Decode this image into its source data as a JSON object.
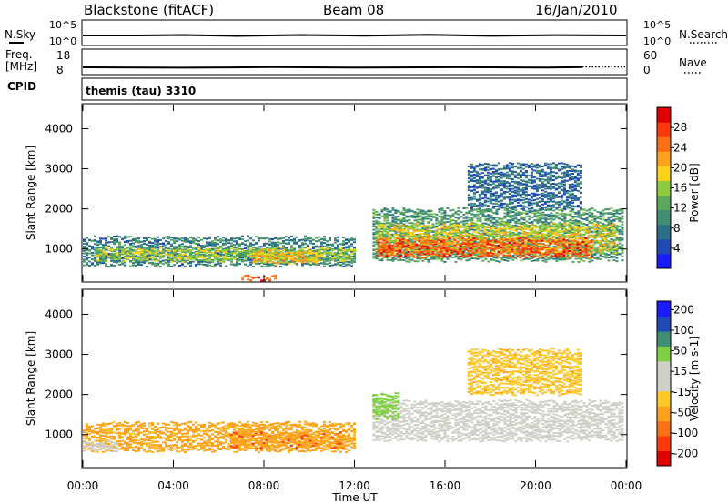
{
  "header": {
    "radar_title": "Blackstone (fitACF)",
    "beam": "Beam 08",
    "date": "16/Jan/2010"
  },
  "scan_info": {
    "left_label": "N.Sky",
    "right_label": "N.Search",
    "left_ticks": [
      "10^5",
      "10^0"
    ],
    "right_ticks": [
      "10^5",
      "10^0"
    ]
  },
  "freq_info": {
    "left_label_1": "Freq.",
    "left_label_2": "[MHz]",
    "right_label": "Nave",
    "left_ticks": [
      "18",
      "8"
    ],
    "right_ticks": [
      "60",
      "0"
    ]
  },
  "cpid": {
    "label": "CPID",
    "value": "themis (tau) 3310"
  },
  "colors": {
    "power_scale": [
      "#1a1aff",
      "#1f49b8",
      "#2a6e8a",
      "#3f8f74",
      "#5aa85a",
      "#8dcc3c",
      "#ffd21a",
      "#ffa21a",
      "#ff6e10",
      "#ff3a08",
      "#e00000"
    ],
    "velocity_scale": [
      "#e00000",
      "#ff3a08",
      "#ff7010",
      "#ffa21a",
      "#ffc828",
      "#cfcfc8",
      "#cfcfc8",
      "#7fd040",
      "#3f8f74",
      "#1f49b8",
      "#1a1aff"
    ]
  },
  "chart_data": [
    {
      "type": "heatmap",
      "panel": "power",
      "ylabel": "Slant Range [km]",
      "ylim": [
        200,
        4600
      ],
      "yticks": [
        "1000",
        "2000",
        "3000",
        "4000"
      ],
      "xlim": [
        "00:00",
        "24:00"
      ],
      "colorbar_label": "Power [dB]",
      "colorbar_ticks": [
        "4",
        "8",
        "12",
        "16",
        "20",
        "24",
        "28"
      ],
      "colorbar_range": [
        0,
        32
      ],
      "bands": [
        {
          "t0": 0.0,
          "t1": 12.0,
          "r0": 580,
          "r1": 1300,
          "dB": 9
        },
        {
          "t0": 0.5,
          "t1": 12.0,
          "r0": 700,
          "r1": 1000,
          "dB": 16
        },
        {
          "t0": 7.5,
          "t1": 10.5,
          "r0": 650,
          "r1": 950,
          "dB": 20
        },
        {
          "t0": 7.0,
          "t1": 8.5,
          "r0": 230,
          "r1": 290,
          "dB": 27
        },
        {
          "t0": 12.8,
          "t1": 23.8,
          "r0": 700,
          "r1": 2000,
          "dB": 11
        },
        {
          "t0": 13.0,
          "t1": 23.5,
          "r0": 900,
          "r1": 1600,
          "dB": 18
        },
        {
          "t0": 13.0,
          "t1": 22.5,
          "r0": 800,
          "r1": 1250,
          "dB": 26
        },
        {
          "t0": 17.0,
          "t1": 22.0,
          "r0": 2000,
          "r1": 3100,
          "dB": 7
        }
      ]
    },
    {
      "type": "heatmap",
      "panel": "velocity",
      "ylabel": "Slant Range [km]",
      "ylim": [
        200,
        4600
      ],
      "yticks": [
        "1000",
        "2000",
        "3000",
        "4000"
      ],
      "xlim": [
        "00:00",
        "24:00"
      ],
      "xticks": [
        "00:00",
        "04:00",
        "08:00",
        "12:00",
        "16:00",
        "20:00",
        "00:00"
      ],
      "xlabel": "Time UT",
      "colorbar_label": "Velocity [m s-1]",
      "colorbar_ticks": [
        "-200",
        "-100",
        "-50",
        "-15",
        "15",
        "50",
        "100",
        "200"
      ],
      "bands": [
        {
          "t0": 0.0,
          "t1": 12.0,
          "r0": 580,
          "r1": 1300,
          "vel": -60
        },
        {
          "t0": 0.0,
          "t1": 1.5,
          "r0": 600,
          "r1": 800,
          "vel": 0
        },
        {
          "t0": 6.5,
          "t1": 11.5,
          "r0": 650,
          "r1": 1050,
          "vel": -90
        },
        {
          "t0": 12.8,
          "t1": 23.8,
          "r0": 850,
          "r1": 1800,
          "vel": 0
        },
        {
          "t0": 12.8,
          "t1": 14.0,
          "r0": 1400,
          "r1": 2000,
          "vel": 30
        },
        {
          "t0": 17.0,
          "t1": 22.0,
          "r0": 2000,
          "r1": 3100,
          "vel": -40
        }
      ]
    }
  ]
}
